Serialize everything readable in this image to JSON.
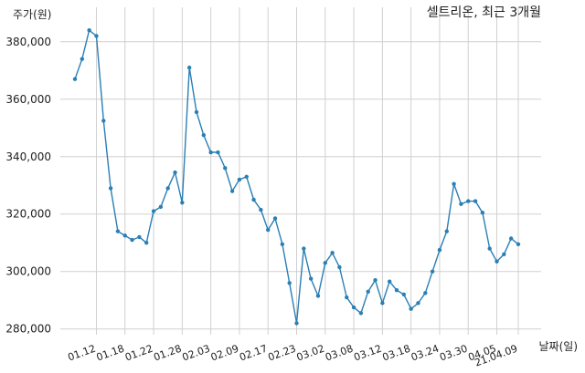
{
  "chart_data": {
    "type": "line",
    "title": "셀트리온, 최근 3개월",
    "ylabel": "주가(원)",
    "xlabel": "날짜(일)",
    "ylim": [
      278000,
      392000
    ],
    "yticks": [
      280000,
      300000,
      320000,
      340000,
      360000,
      380000
    ],
    "ytick_labels": [
      "280,000",
      "300,000",
      "320,000",
      "340,000",
      "360,000",
      "380,000"
    ],
    "grid": true,
    "x_tick_labels": [
      "01.12",
      "01.18",
      "01.22",
      "01.28",
      "02.03",
      "02.09",
      "02.17",
      "02.23",
      "03.02",
      "03.08",
      "03.12",
      "03.18",
      "03.24",
      "03.30",
      "04.05",
      "21.04.09"
    ],
    "x_tick_index": [
      3,
      7,
      11,
      15,
      19,
      23,
      27,
      31,
      35,
      39,
      43,
      47,
      51,
      55,
      59,
      62
    ],
    "series": [
      {
        "color": "#2a7fb5",
        "values": [
          367000,
          374000,
          384000,
          382000,
          352500,
          329000,
          314000,
          312500,
          311000,
          312000,
          310000,
          321000,
          322500,
          329000,
          334500,
          324000,
          371000,
          355500,
          347500,
          341500,
          341500,
          336000,
          328000,
          332000,
          333000,
          325000,
          321500,
          314500,
          318500,
          309500,
          296000,
          282000,
          308000,
          297500,
          291500,
          303000,
          306500,
          301500,
          291000,
          287500,
          285500,
          293000,
          297000,
          289000,
          296500,
          293500,
          292000,
          287000,
          289000,
          292500,
          300000,
          307500,
          314000,
          330500,
          323500,
          324500,
          324500,
          320500,
          308000,
          303500,
          306000,
          311500,
          309500
        ]
      }
    ]
  }
}
